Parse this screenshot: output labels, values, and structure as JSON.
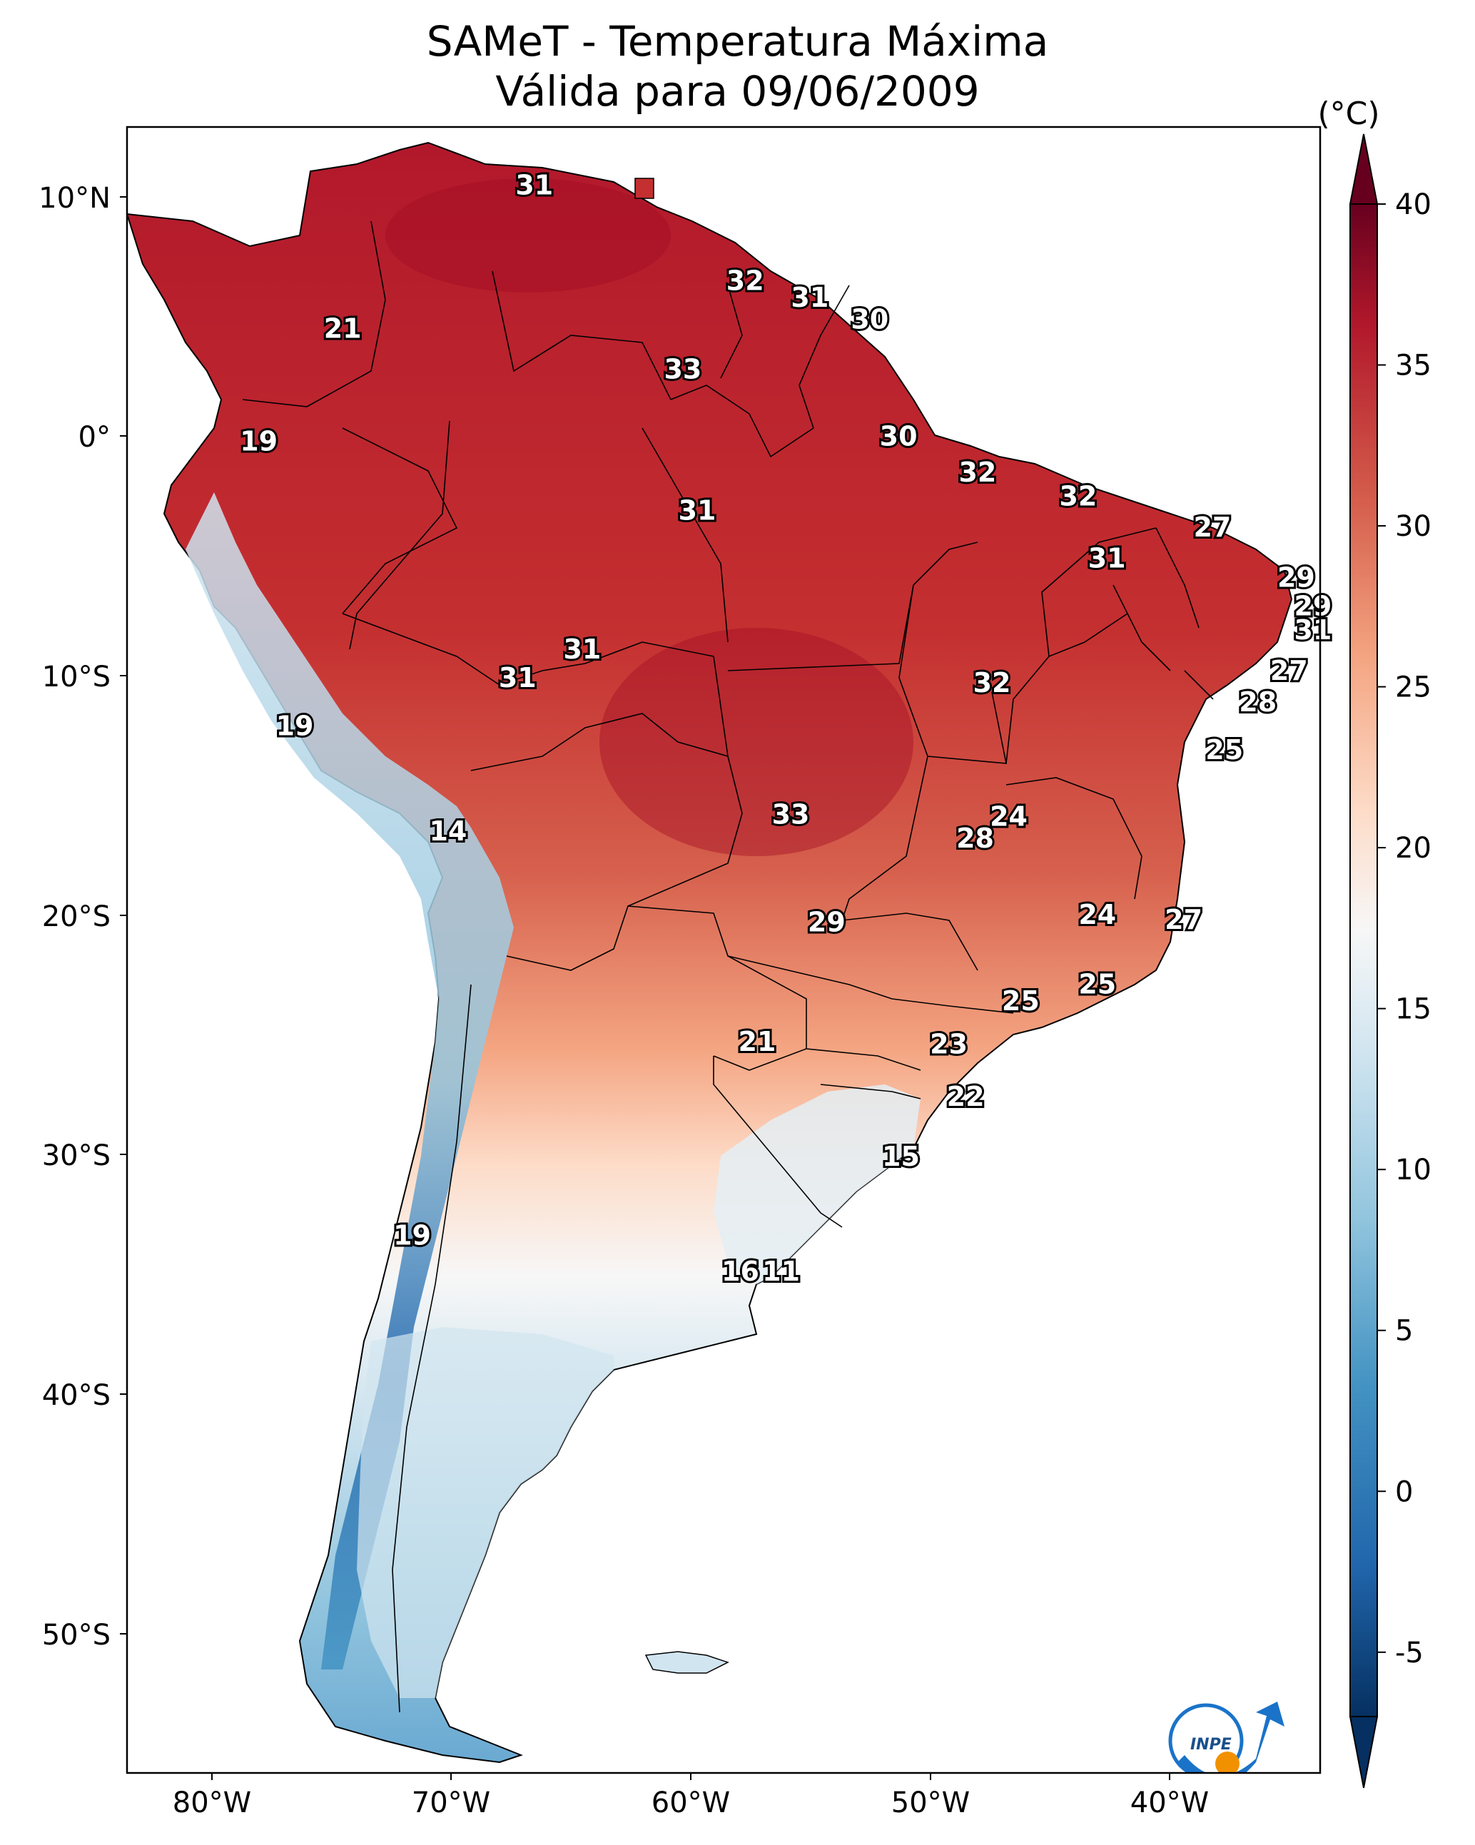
{
  "title": "SAMeT - Temperatura Máxima",
  "subtitle": "Válida para 09/06/2009",
  "colorbar": {
    "unit": "(°C)",
    "ticks": [
      "40",
      "35",
      "30",
      "25",
      "20",
      "15",
      "10",
      "5",
      "0",
      "-5"
    ],
    "colors": [
      "#67001f",
      "#b2182b",
      "#d6604d",
      "#f4a582",
      "#fddbc7",
      "#f7f7f7",
      "#d1e5f0",
      "#92c5de",
      "#4393c3",
      "#2166ac",
      "#053061"
    ]
  },
  "axes": {
    "lat_labels": [
      "10°N",
      "0°",
      "10°S",
      "20°S",
      "30°S",
      "40°S",
      "50°S"
    ],
    "lon_labels": [
      "80°W",
      "70°W",
      "60°W",
      "50°W",
      "40°W"
    ]
  },
  "station_labels": [
    {
      "text": "31",
      "lon": -66.5,
      "lat": 10.5
    },
    {
      "text": "21",
      "lon": -74.5,
      "lat": 4.5
    },
    {
      "text": "32",
      "lon": -57.7,
      "lat": 6.5
    },
    {
      "text": "31",
      "lon": -55,
      "lat": 5.8
    },
    {
      "text": "30",
      "lon": -52.5,
      "lat": 4.9
    },
    {
      "text": "33",
      "lon": -60.3,
      "lat": 2.8
    },
    {
      "text": "19",
      "lon": -78,
      "lat": -0.2
    },
    {
      "text": "30",
      "lon": -51.3,
      "lat": 0
    },
    {
      "text": "32",
      "lon": -48,
      "lat": -1.5
    },
    {
      "text": "31",
      "lon": -59.7,
      "lat": -3.1
    },
    {
      "text": "32",
      "lon": -43.8,
      "lat": -2.5
    },
    {
      "text": "27",
      "lon": -38.2,
      "lat": -3.8
    },
    {
      "text": "31",
      "lon": -42.6,
      "lat": -5.1
    },
    {
      "text": "29",
      "lon": -34.7,
      "lat": -5.9
    },
    {
      "text": "29",
      "lon": -34,
      "lat": -7.1
    },
    {
      "text": "31",
      "lon": -34,
      "lat": -8.1
    },
    {
      "text": "31",
      "lon": -64.5,
      "lat": -8.9
    },
    {
      "text": "31",
      "lon": -67.2,
      "lat": -10.1
    },
    {
      "text": "32",
      "lon": -47.4,
      "lat": -10.3
    },
    {
      "text": "27",
      "lon": -35,
      "lat": -9.8
    },
    {
      "text": "28",
      "lon": -36.3,
      "lat": -11.1
    },
    {
      "text": "19",
      "lon": -76.5,
      "lat": -12.1
    },
    {
      "text": "25",
      "lon": -37.7,
      "lat": -13.1
    },
    {
      "text": "14",
      "lon": -70.1,
      "lat": -16.5
    },
    {
      "text": "33",
      "lon": -55.8,
      "lat": -15.8
    },
    {
      "text": "24",
      "lon": -46.7,
      "lat": -15.9
    },
    {
      "text": "28",
      "lon": -48.1,
      "lat": -16.8
    },
    {
      "text": "24",
      "lon": -43,
      "lat": -20
    },
    {
      "text": "27",
      "lon": -39.4,
      "lat": -20.2
    },
    {
      "text": "29",
      "lon": -54.3,
      "lat": -20.3
    },
    {
      "text": "25",
      "lon": -43,
      "lat": -22.9
    },
    {
      "text": "25",
      "lon": -46.2,
      "lat": -23.6
    },
    {
      "text": "21",
      "lon": -57.2,
      "lat": -25.3
    },
    {
      "text": "23",
      "lon": -49.2,
      "lat": -25.4
    },
    {
      "text": "22",
      "lon": -48.5,
      "lat": -27.6
    },
    {
      "text": "15",
      "lon": -51.2,
      "lat": -30.1
    },
    {
      "text": "19",
      "lon": -71.6,
      "lat": -33.4
    },
    {
      "text": "16",
      "lon": -57.9,
      "lat": -34.9
    },
    {
      "text": "11",
      "lon": -56.2,
      "lat": -34.9
    }
  ],
  "logo": {
    "text": "INPE"
  }
}
